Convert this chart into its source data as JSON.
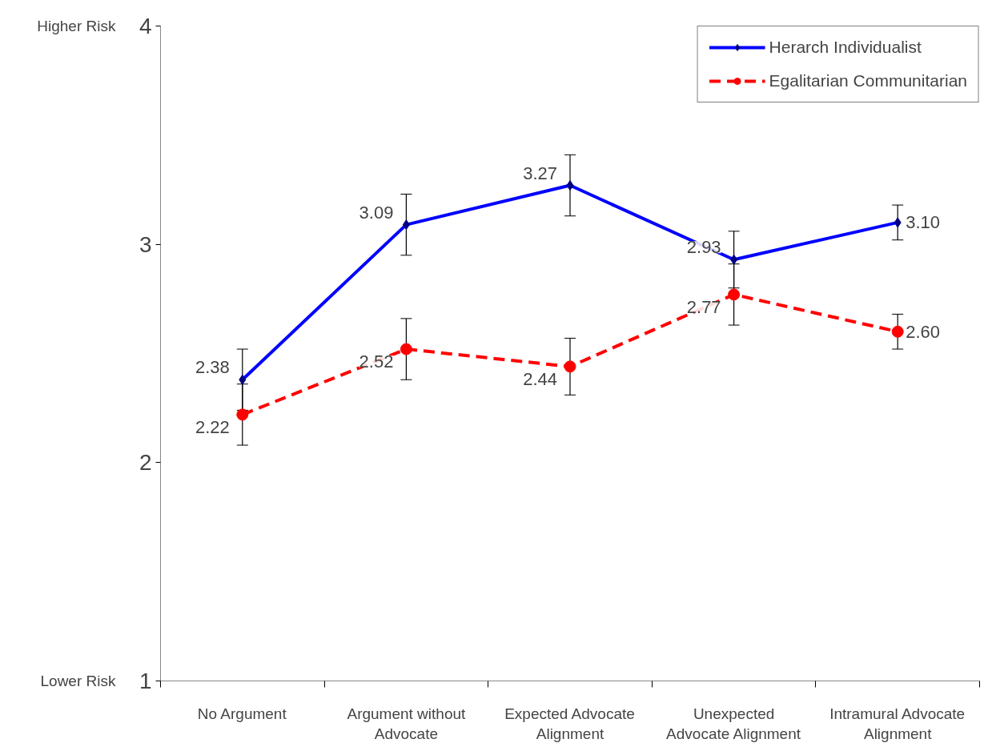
{
  "chart_data": {
    "type": "line",
    "categories": [
      "No Argument",
      "Argument without\nAdvocate",
      "Expected Advocate\nAlignment",
      "Unexpected\nAdvocate Alignment",
      "Intramural Advocate\nAlignment"
    ],
    "series": [
      {
        "name": "Herarch Individualist",
        "color": "#0000ff",
        "marker": "diamond",
        "line_style": "solid",
        "values": [
          2.38,
          3.09,
          3.27,
          2.93,
          3.1
        ],
        "value_labels": [
          "2.38",
          "3.09",
          "3.27",
          "2.93",
          "3.10"
        ],
        "errors": [
          0.14,
          0.14,
          0.14,
          0.13,
          0.08
        ]
      },
      {
        "name": "Egalitarian Communitarian",
        "color": "#ff0000",
        "marker": "circle",
        "line_style": "dashed",
        "values": [
          2.22,
          2.52,
          2.44,
          2.77,
          2.6
        ],
        "value_labels": [
          "2.22",
          "2.52",
          "2.44",
          "2.77",
          "2.60"
        ],
        "errors": [
          0.14,
          0.14,
          0.13,
          0.14,
          0.08
        ]
      }
    ],
    "ylim": [
      1,
      4
    ],
    "yticks": [
      1,
      2,
      3,
      4
    ],
    "grid": false,
    "legend": "top right",
    "annotations": [
      "Higher Risk",
      "Lower Risk"
    ]
  }
}
